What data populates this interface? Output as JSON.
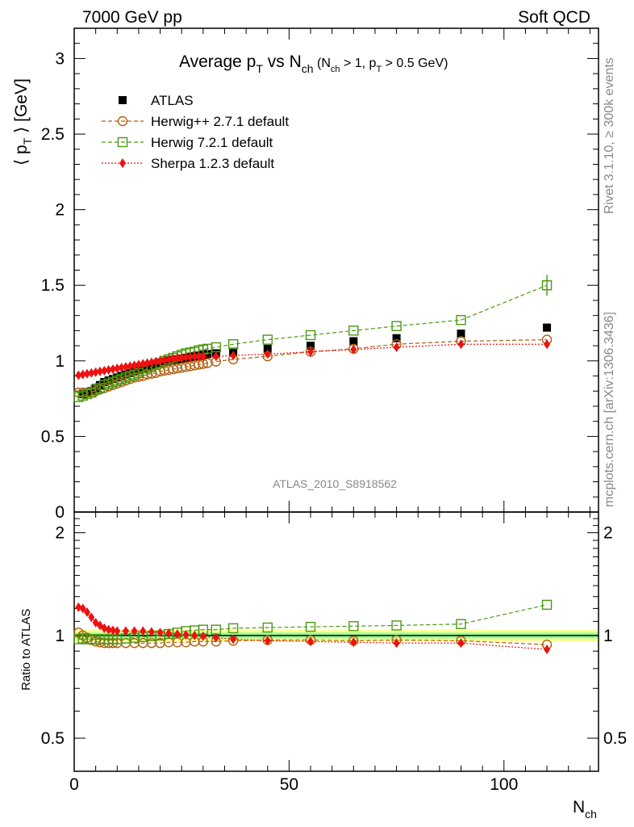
{
  "header": {
    "left": "7000 GeV pp",
    "right": "Soft QCD"
  },
  "side": {
    "rivet": "Rivet 3.1.10, ≥ 300k events",
    "mcplots": "mcplots.cern.ch [arXiv:1306.3436]"
  },
  "colors": {
    "atlas": "#000000",
    "herwigpp": "#b06010",
    "herwig7": "#4a9a10",
    "sherpa": "#ee1111",
    "band_outer": "#ffff99",
    "band_inner": "#99ff99"
  },
  "chart_data": [
    {
      "type": "scatter",
      "title_main": "Average p",
      "title_sub": "T",
      "title_mid": " vs N",
      "title_sub2": "ch",
      "title_cond_a": " (N",
      "title_cond_b": "ch",
      "title_cond_c": " > 1, p",
      "title_cond_d": "T",
      "title_cond_e": " > 0.5 GeV)",
      "ylabel_a": "⟨ p",
      "ylabel_b": "T",
      "ylabel_c": " ⟩ [GeV]",
      "watermark": "ATLAS_2010_S8918562",
      "xlim": [
        0,
        122
      ],
      "ylim": [
        0,
        3.2
      ],
      "yticks": [
        0,
        0.5,
        1,
        1.5,
        2,
        2.5,
        3
      ],
      "ytick_labels": [
        "0",
        "0.5",
        "1",
        "1.5",
        "2",
        "2.5",
        "3"
      ],
      "legend_position": "top-left",
      "series": [
        {
          "name": "ATLAS",
          "marker": "square-filled",
          "x": [
            2,
            3,
            4,
            5,
            6,
            7,
            8,
            9,
            10,
            11,
            12,
            13,
            14,
            15,
            16,
            17,
            18,
            19,
            20,
            21,
            22,
            23,
            24,
            25,
            26,
            27,
            28,
            29,
            30,
            31,
            33,
            37,
            45,
            55,
            65,
            75,
            90,
            110
          ],
          "y": [
            0.78,
            0.79,
            0.8,
            0.82,
            0.84,
            0.86,
            0.87,
            0.88,
            0.89,
            0.9,
            0.91,
            0.92,
            0.93,
            0.94,
            0.95,
            0.96,
            0.97,
            0.98,
            0.99,
            0.995,
            1.0,
            1.005,
            1.01,
            1.015,
            1.02,
            1.025,
            1.03,
            1.035,
            1.04,
            1.045,
            1.05,
            1.06,
            1.08,
            1.1,
            1.13,
            1.15,
            1.18,
            1.22
          ]
        },
        {
          "name": "Herwig++ 2.7.1 default",
          "marker": "circle-open",
          "line": "dashed",
          "x": [
            1,
            2,
            3,
            4,
            5,
            6,
            7,
            8,
            9,
            10,
            11,
            12,
            13,
            14,
            15,
            16,
            17,
            18,
            19,
            20,
            21,
            22,
            23,
            24,
            25,
            26,
            27,
            28,
            29,
            30,
            31,
            33,
            37,
            45,
            55,
            65,
            75,
            90,
            110
          ],
          "y": [
            0.79,
            0.79,
            0.79,
            0.79,
            0.8,
            0.81,
            0.82,
            0.83,
            0.84,
            0.85,
            0.86,
            0.87,
            0.88,
            0.89,
            0.895,
            0.9,
            0.91,
            0.915,
            0.92,
            0.93,
            0.935,
            0.94,
            0.945,
            0.95,
            0.955,
            0.96,
            0.965,
            0.97,
            0.975,
            0.98,
            0.985,
            0.995,
            1.01,
            1.03,
            1.06,
            1.08,
            1.11,
            1.13,
            1.14
          ]
        },
        {
          "name": "Herwig 7.2.1 default",
          "marker": "square-open",
          "line": "dashed",
          "x": [
            1,
            2,
            3,
            4,
            5,
            6,
            7,
            8,
            9,
            10,
            11,
            12,
            13,
            14,
            15,
            16,
            17,
            18,
            19,
            20,
            21,
            22,
            23,
            24,
            25,
            26,
            27,
            28,
            29,
            30,
            31,
            33,
            37,
            45,
            55,
            65,
            75,
            90,
            110
          ],
          "y": [
            0.76,
            0.77,
            0.78,
            0.79,
            0.81,
            0.82,
            0.84,
            0.85,
            0.86,
            0.87,
            0.88,
            0.89,
            0.9,
            0.91,
            0.92,
            0.935,
            0.95,
            0.96,
            0.975,
            0.985,
            1.0,
            1.01,
            1.02,
            1.03,
            1.04,
            1.05,
            1.055,
            1.06,
            1.07,
            1.075,
            1.08,
            1.09,
            1.11,
            1.14,
            1.17,
            1.2,
            1.23,
            1.27,
            1.5
          ]
        },
        {
          "name": "Sherpa 1.2.3 default",
          "marker": "diamond-filled",
          "line": "dotted",
          "x": [
            1,
            2,
            3,
            4,
            5,
            6,
            7,
            8,
            9,
            10,
            11,
            12,
            13,
            14,
            15,
            16,
            17,
            18,
            19,
            20,
            21,
            22,
            23,
            24,
            25,
            26,
            27,
            28,
            29,
            30,
            33,
            37,
            45,
            55,
            65,
            75,
            90,
            110
          ],
          "y": [
            0.905,
            0.91,
            0.915,
            0.92,
            0.925,
            0.93,
            0.935,
            0.94,
            0.945,
            0.95,
            0.955,
            0.96,
            0.965,
            0.97,
            0.975,
            0.98,
            0.985,
            0.99,
            0.995,
            1.0,
            1.005,
            1.01,
            1.015,
            1.02,
            1.02,
            1.025,
            1.025,
            1.03,
            1.03,
            1.03,
            1.03,
            1.035,
            1.045,
            1.06,
            1.075,
            1.09,
            1.11,
            1.11
          ]
        }
      ]
    },
    {
      "type": "scatter",
      "ylabel": "Ratio to ATLAS",
      "xlabel_a": "N",
      "xlabel_b": "ch",
      "xlim": [
        0,
        122
      ],
      "ylim": [
        0.4,
        2.3
      ],
      "yscale": "log",
      "yticks": [
        0.5,
        1,
        2
      ],
      "ytick_labels": [
        "0.5",
        "1",
        "2"
      ],
      "xticks": [
        0,
        50,
        100
      ],
      "xtick_labels": [
        "0",
        "50",
        "100"
      ],
      "band_inner": [
        0.98,
        1.02
      ],
      "band_outer": [
        0.96,
        1.04
      ],
      "series": [
        {
          "name": "Herwig++ 2.7.1 default",
          "x": [
            1,
            2,
            3,
            4,
            5,
            6,
            7,
            8,
            9,
            10,
            12,
            14,
            16,
            18,
            20,
            22,
            24,
            26,
            28,
            30,
            33,
            37,
            45,
            55,
            65,
            75,
            90,
            110
          ],
          "y": [
            1.02,
            1.0,
            0.985,
            0.97,
            0.96,
            0.955,
            0.95,
            0.95,
            0.95,
            0.95,
            0.95,
            0.95,
            0.95,
            0.95,
            0.95,
            0.955,
            0.955,
            0.955,
            0.96,
            0.96,
            0.96,
            0.965,
            0.97,
            0.97,
            0.965,
            0.97,
            0.965,
            0.94
          ]
        },
        {
          "name": "Herwig 7.2.1 default",
          "x": [
            1,
            2,
            3,
            4,
            5,
            6,
            7,
            8,
            9,
            10,
            12,
            14,
            16,
            18,
            20,
            22,
            24,
            26,
            28,
            30,
            33,
            37,
            45,
            55,
            65,
            75,
            90,
            110
          ],
          "y": [
            0.975,
            0.98,
            0.975,
            0.975,
            0.975,
            0.975,
            0.975,
            0.975,
            0.975,
            0.975,
            0.98,
            0.985,
            0.99,
            0.995,
            1.0,
            1.01,
            1.02,
            1.03,
            1.035,
            1.04,
            1.04,
            1.05,
            1.055,
            1.06,
            1.065,
            1.07,
            1.08,
            1.23
          ]
        },
        {
          "name": "Sherpa 1.2.3 default",
          "x": [
            1,
            2,
            3,
            4,
            5,
            6,
            7,
            8,
            9,
            10,
            12,
            14,
            16,
            18,
            20,
            22,
            24,
            26,
            28,
            30,
            33,
            37,
            45,
            55,
            65,
            75,
            90,
            110
          ],
          "y": [
            1.21,
            1.2,
            1.17,
            1.13,
            1.09,
            1.07,
            1.05,
            1.04,
            1.035,
            1.03,
            1.03,
            1.03,
            1.03,
            1.025,
            1.02,
            1.015,
            1.01,
            1.005,
            1.0,
            0.995,
            0.985,
            0.975,
            0.965,
            0.96,
            0.955,
            0.95,
            0.95,
            0.91
          ]
        }
      ]
    }
  ]
}
